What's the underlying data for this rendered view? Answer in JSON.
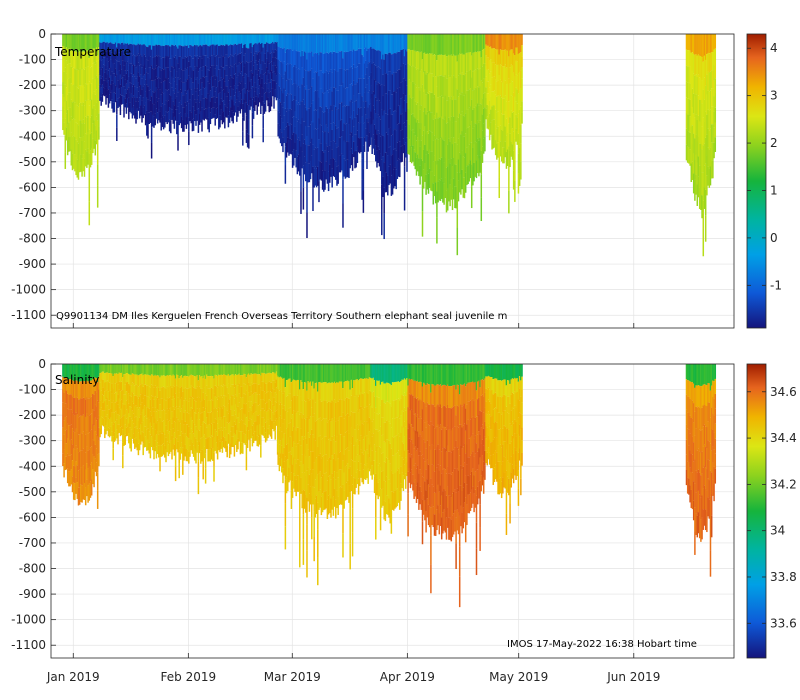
{
  "chart_data": [
    {
      "type": "heatmap",
      "title": "Temperature",
      "annotation": "Q9901134 DM Iles Kerguelen French Overseas Territory Southern elephant seal juvenile m",
      "x_ticks": [
        "Jan 2019",
        "Feb 2019",
        "Mar 2019",
        "Apr 2019",
        "May 2019",
        "Jun 2019"
      ],
      "y_ticks": [
        "0",
        "-100",
        "-200",
        "-300",
        "-400",
        "-500",
        "-600",
        "-700",
        "-800",
        "-900",
        "-1000",
        "-1100"
      ],
      "ylim": [
        -1150,
        0
      ],
      "xlim": [
        "2018-12-26",
        "2019-06-28"
      ],
      "colorbar_ticks": [
        "4",
        "3",
        "2",
        "1",
        "0",
        "-1"
      ],
      "colorbar_range": [
        -1.9,
        4.3
      ],
      "grid": true,
      "colormap": "parula-like",
      "profile_groups": [
        {
          "start": "2018-12-29",
          "end": "2019-01-08",
          "max_depth": 650,
          "surface_value": 1.5,
          "mid_value": 2.5,
          "deep_value": 2.2
        },
        {
          "start": "2019-01-08",
          "end": "2019-02-25",
          "max_depth": 420,
          "surface_value": 0.2,
          "mid_value": -1.7,
          "deep_value": -1.8
        },
        {
          "start": "2019-02-25",
          "end": "2019-03-22",
          "max_depth": 700,
          "surface_value": -0.5,
          "mid_value": -1.3,
          "deep_value": -1.8
        },
        {
          "start": "2019-03-22",
          "end": "2019-04-01",
          "max_depth": 720,
          "surface_value": -0.3,
          "mid_value": -1.6,
          "deep_value": -1.8
        },
        {
          "start": "2019-04-01",
          "end": "2019-04-22",
          "max_depth": 800,
          "surface_value": 1.6,
          "mid_value": 2.3,
          "deep_value": 1.8
        },
        {
          "start": "2019-04-22",
          "end": "2019-05-02",
          "max_depth": 600,
          "surface_value": 3.8,
          "mid_value": 2.8,
          "deep_value": 2.2
        },
        {
          "start": "2019-06-15",
          "end": "2019-06-23",
          "max_depth": 800,
          "surface_value": 3.6,
          "mid_value": 2.6,
          "deep_value": 2.1
        }
      ]
    },
    {
      "type": "heatmap",
      "title": "Salinity",
      "annotation": "IMOS 17-May-2022 16:38 Hobart time",
      "x_ticks": [
        "Jan 2019",
        "Feb 2019",
        "Mar 2019",
        "Apr 2019",
        "May 2019",
        "Jun 2019"
      ],
      "y_ticks": [
        "0",
        "-100",
        "-200",
        "-300",
        "-400",
        "-500",
        "-600",
        "-700",
        "-800",
        "-900",
        "-1000",
        "-1100"
      ],
      "ylim": [
        -1150,
        0
      ],
      "xlim": [
        "2018-12-26",
        "2019-06-28"
      ],
      "colorbar_ticks": [
        "34.6",
        "34.4",
        "34.2",
        "34",
        "33.8",
        "33.6"
      ],
      "colorbar_range": [
        33.45,
        34.72
      ],
      "grid": true,
      "colormap": "parula-like",
      "profile_groups": [
        {
          "start": "2018-12-29",
          "end": "2019-01-08",
          "max_depth": 650,
          "surface_value": 33.85,
          "mid_value": 34.6,
          "deep_value": 34.55
        },
        {
          "start": "2019-01-08",
          "end": "2019-02-25",
          "max_depth": 420,
          "surface_value": 34.1,
          "mid_value": 34.45,
          "deep_value": 34.45
        },
        {
          "start": "2019-02-25",
          "end": "2019-03-22",
          "max_depth": 700,
          "surface_value": 34.0,
          "mid_value": 34.45,
          "deep_value": 34.45
        },
        {
          "start": "2019-03-22",
          "end": "2019-04-01",
          "max_depth": 720,
          "surface_value": 33.8,
          "mid_value": 34.4,
          "deep_value": 34.45
        },
        {
          "start": "2019-04-01",
          "end": "2019-04-22",
          "max_depth": 800,
          "surface_value": 33.9,
          "mid_value": 34.6,
          "deep_value": 34.62
        },
        {
          "start": "2019-04-22",
          "end": "2019-05-02",
          "max_depth": 600,
          "surface_value": 33.9,
          "mid_value": 34.45,
          "deep_value": 34.5
        },
        {
          "start": "2019-06-15",
          "end": "2019-06-23",
          "max_depth": 800,
          "surface_value": 33.9,
          "mid_value": 34.55,
          "deep_value": 34.62
        }
      ]
    }
  ]
}
